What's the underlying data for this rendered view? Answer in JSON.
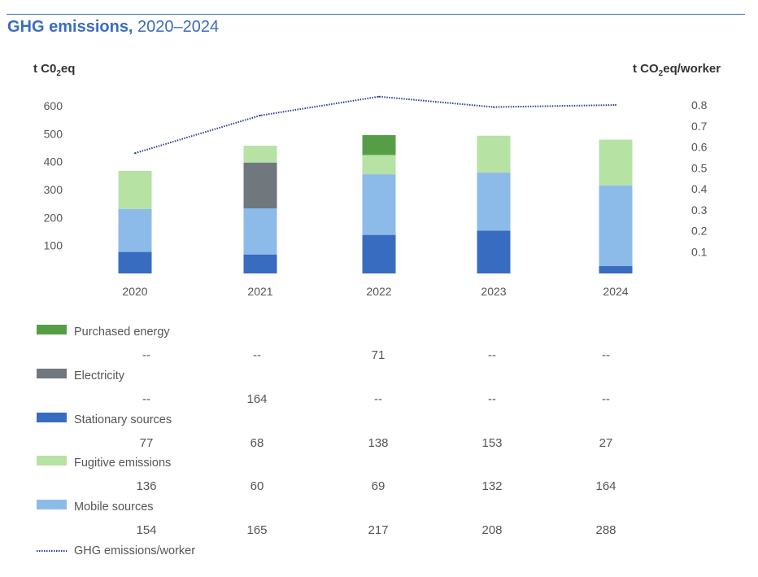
{
  "title": {
    "bold": "GHG emissions,",
    "rest": " 2020–2024"
  },
  "chart_data": {
    "type": "bar",
    "stacked": true,
    "categories": [
      "2020",
      "2021",
      "2022",
      "2023",
      "2024"
    ],
    "ylabel_left": {
      "pre": "t C0",
      "sub": "2",
      "post": "eq"
    },
    "ylabel_right": {
      "pre": "t CO",
      "sub": "2",
      "post": "eq/worker"
    },
    "ylim": [
      0,
      600
    ],
    "yticks": [
      "100",
      "200",
      "300",
      "400",
      "500",
      "600"
    ],
    "y2lim": [
      0,
      0.8
    ],
    "y2ticks": [
      "0.1",
      "0.2",
      "0.3",
      "0.4",
      "0.5",
      "0.6",
      "0.7",
      "0.8"
    ],
    "grid": false,
    "legend_placement": "bottom",
    "series": [
      {
        "name": "Purchased energy",
        "color": "#559e45",
        "values": [
          null,
          null,
          71,
          null,
          null
        ],
        "labels": [
          "--",
          "--",
          "71",
          "--",
          "--"
        ]
      },
      {
        "name": "Electricity",
        "color": "#70777d",
        "values": [
          null,
          164,
          null,
          null,
          null
        ],
        "labels": [
          "--",
          "164",
          "--",
          "--",
          "--"
        ]
      },
      {
        "name": "Stationary sources",
        "color": "#386cc0",
        "values": [
          77,
          68,
          138,
          153,
          27
        ],
        "labels": [
          "77",
          "68",
          "138",
          "153",
          "27"
        ]
      },
      {
        "name": "Fugitive emissions",
        "color": "#b6e2a4",
        "values": [
          136,
          60,
          69,
          132,
          164
        ],
        "labels": [
          "136",
          "60",
          "69",
          "132",
          "164"
        ]
      },
      {
        "name": "Mobile sources",
        "color": "#8cbbea",
        "values": [
          154,
          165,
          217,
          208,
          288
        ],
        "labels": [
          "154",
          "165",
          "217",
          "208",
          "288"
        ]
      }
    ],
    "stack_order": [
      "Stationary sources",
      "Mobile sources",
      "Electricity",
      "Fugitive emissions",
      "Purchased energy"
    ],
    "line": {
      "name": "GHG emissions/worker",
      "color": "#2a3f8f",
      "axis": "right",
      "style": "dotted",
      "values": [
        0.57,
        0.75,
        0.84,
        0.79,
        0.8
      ]
    }
  }
}
